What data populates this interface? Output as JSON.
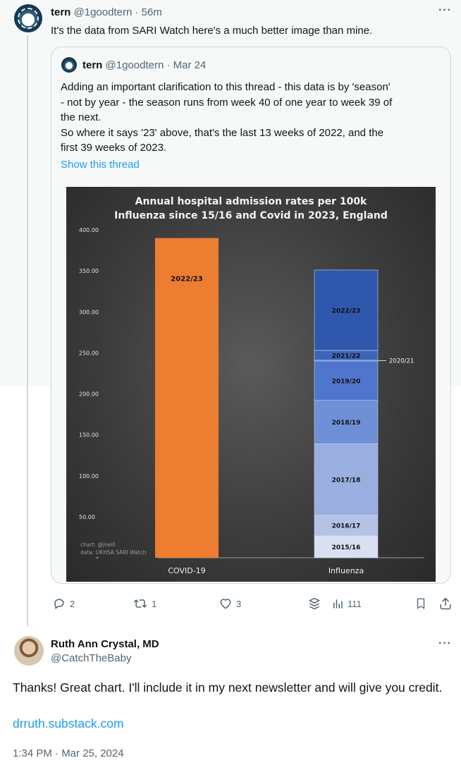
{
  "tweet1": {
    "name": "tern",
    "handle": "@1goodtern",
    "time": "· 56m",
    "text": "It's the data from SARI Watch here's a much better image than mine."
  },
  "quoted": {
    "name": "tern",
    "handle": "@1goodtern",
    "date": "· Mar 24",
    "lines": [
      "Adding an important clarification to this thread - this data is by 'season'",
      "- not by year - the season runs from week 40 of one year to week 39 of",
      "the next.",
      "So where it says '23' above, that's the last 13 weeks of 2022, and the",
      "first 39 weeks of 2023."
    ],
    "show_thread": "Show this thread"
  },
  "chart_data": {
    "type": "bar",
    "title": "Annual hospital admission rates per 100k",
    "subtitle": "Influenza since 15/16 and Covid in 2023, England",
    "ylim": [
      0,
      400
    ],
    "yticks": [
      "50.00",
      "100.00",
      "150.00",
      "200.00",
      "250.00",
      "300.00",
      "350.00",
      "400.00"
    ],
    "categories": [
      "COVID-19",
      "Influenza"
    ],
    "covid": {
      "label": "2022/23",
      "value": 390,
      "color": "#ed7d31"
    },
    "influenza_stack": [
      {
        "label": "2015/16",
        "value": 27,
        "color": "#d9e0f2"
      },
      {
        "label": "2016/17",
        "value": 25,
        "color": "#b4c2e6"
      },
      {
        "label": "2017/18",
        "value": 87,
        "color": "#9aaee0"
      },
      {
        "label": "2018/19",
        "value": 53,
        "color": "#6f8fd6"
      },
      {
        "label": "2019/20",
        "value": 48,
        "color": "#4f76cc"
      },
      {
        "label": "2020/21",
        "value": 1,
        "color": "#3e66c0"
      },
      {
        "label": "2021/22",
        "value": 12,
        "color": "#3d64b8"
      },
      {
        "label": "2022/23",
        "value": 98,
        "color": "#2f58ad"
      }
    ],
    "annotation": "2020/21",
    "credit_lines": [
      "chart: @jneill",
      "data: UKHSA SARI Watch"
    ],
    "grid": false
  },
  "actions": {
    "replies": "2",
    "reposts": "1",
    "likes": "3",
    "views": "111"
  },
  "tweet2": {
    "name": "Ruth Ann Crystal, MD",
    "handle": "@CatchTheBaby",
    "text": "Thanks! Great chart. I'll include it in my next newsletter and will give you credit.",
    "link": "drruth.substack.com",
    "timestamp": "1:34 PM · Mar 25, 2024"
  }
}
